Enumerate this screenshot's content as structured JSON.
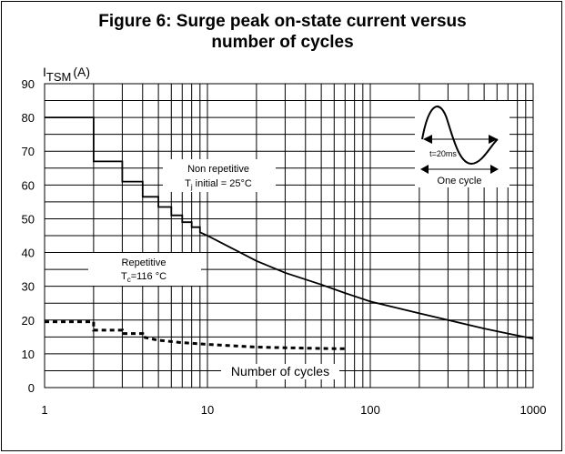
{
  "figure": {
    "title_line1": "Figure 6: Surge peak on-state current versus",
    "title_line2": "number of cycles"
  },
  "chart_data": {
    "type": "line",
    "title": "Figure 6: Surge peak on-state current versus number of cycles",
    "xlabel": "Number of cycles",
    "ylabel_main": "I",
    "ylabel_sub": "TSM",
    "ylabel_unit": "(A)",
    "x_scale": "log",
    "xlim": [
      1,
      1000
    ],
    "ylim": [
      0,
      90
    ],
    "x_ticks": [
      1,
      10,
      100,
      1000
    ],
    "x_tick_labels": [
      "1",
      "10",
      "100",
      "1000"
    ],
    "y_ticks": [
      0,
      10,
      20,
      30,
      40,
      50,
      60,
      70,
      80,
      90
    ],
    "y_tick_labels": [
      "0",
      "10",
      "20",
      "30",
      "40",
      "50",
      "60",
      "70",
      "80",
      "90"
    ],
    "grid": true,
    "series": [
      {
        "style": "solid",
        "x": [
          1,
          2,
          2,
          3,
          3,
          4,
          4,
          5,
          5,
          6,
          6,
          7,
          7,
          8,
          8,
          9,
          9,
          10,
          20,
          30,
          50,
          70,
          100,
          200,
          300,
          500,
          700,
          1000
        ],
        "y": [
          80,
          80,
          67,
          67,
          61,
          61,
          56.5,
          56.5,
          53.5,
          53.5,
          51,
          51,
          49,
          49,
          47.5,
          47.5,
          46,
          45,
          37.5,
          34,
          30.5,
          28,
          25.5,
          22,
          20,
          17.5,
          16,
          14.5
        ]
      },
      {
        "style": "dashed",
        "x": [
          1,
          2,
          2,
          3,
          3,
          4,
          4,
          5,
          7,
          10,
          20,
          30,
          50,
          70
        ],
        "y": [
          19.5,
          19.5,
          17,
          17,
          16,
          16,
          15,
          14,
          13.3,
          12.8,
          12,
          11.8,
          11.6,
          11.5
        ]
      }
    ],
    "annotations": {
      "non_repetitive_line1": "Non repetitive",
      "non_repetitive_line2_prefix": "T",
      "non_repetitive_line2_sub": "j",
      "non_repetitive_line2_suffix": " initial = 25°C",
      "repetitive_line1": "Repetitive",
      "repetitive_line2_prefix": "T",
      "repetitive_line2_sub": "c",
      "repetitive_line2_suffix": "=116 °C",
      "inset_time": "t=20ms",
      "inset_cycle": "One cycle"
    },
    "colors": {
      "line": "#000000",
      "grid": "#000000",
      "background": "#ffffff"
    }
  }
}
